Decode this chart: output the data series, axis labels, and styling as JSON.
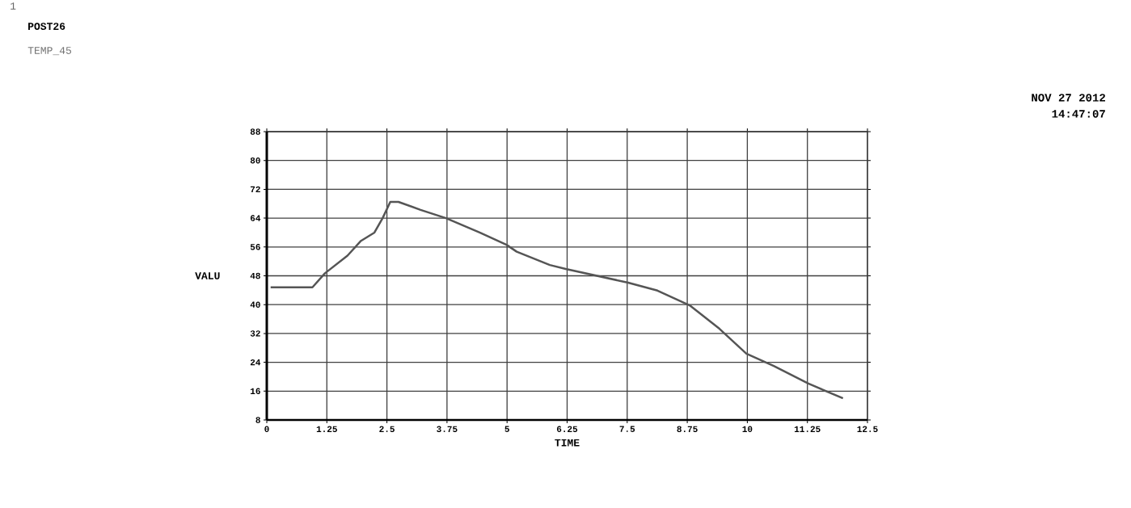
{
  "chart_data": {
    "type": "line",
    "xlabel": "TIME",
    "ylabel": "VALU",
    "annotations": [
      "1",
      "POST26",
      "TEMP_45",
      "NOV 27 2012",
      "14:47:07"
    ],
    "x": [
      0.08,
      0.95,
      1.21,
      1.68,
      1.96,
      2.24,
      2.41,
      2.57,
      2.74,
      3.2,
      3.73,
      4.43,
      4.99,
      5.2,
      5.89,
      6.22,
      7.52,
      8.13,
      8.8,
      9.42,
      9.98,
      10.55,
      11.27,
      11.99
    ],
    "series": [
      {
        "color": "#555555",
        "values": [
          44.8,
          44.8,
          48.7,
          53.6,
          57.7,
          60.0,
          64.0,
          68.5,
          68.5,
          66.3,
          64.0,
          60.0,
          56.6,
          54.7,
          51.0,
          49.9,
          46.1,
          43.9,
          39.8,
          33.3,
          26.4,
          23.0,
          18.1,
          14.0
        ]
      }
    ],
    "xlim": [
      0,
      12.5
    ],
    "ylim": [
      8,
      88
    ],
    "xticks": [
      0,
      1.25,
      2.5,
      3.75,
      5,
      6.25,
      7.5,
      8.75,
      10,
      11.25,
      12.5
    ],
    "yticks": [
      8,
      16,
      24,
      32,
      40,
      48,
      56,
      64,
      72,
      80,
      88
    ],
    "grid": true,
    "marker": "none",
    "line_style": "solid"
  }
}
